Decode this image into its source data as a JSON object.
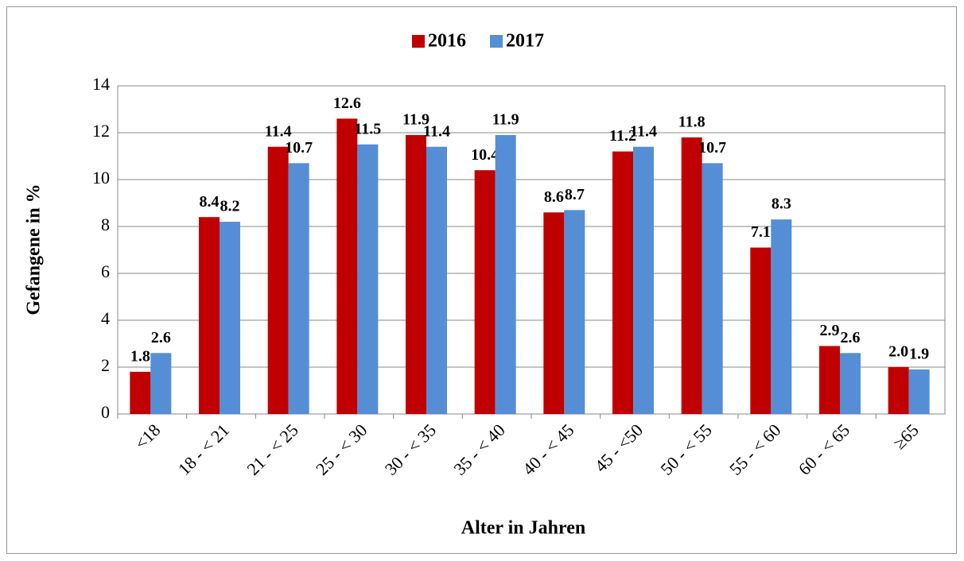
{
  "chart_data": {
    "type": "bar",
    "x_label": "Alter in Jahren",
    "y_label": "Gefangene in %",
    "categories": [
      "<18",
      "18 - < 21",
      "21 - < 25",
      "25 - < 30",
      "30 - < 35",
      "35 - < 40",
      "40 - < 45",
      "45 - <50",
      "50 - < 55",
      "55 - < 60",
      "60 - < 65",
      "≥65"
    ],
    "series": [
      {
        "name": "2016",
        "color": "#c00000",
        "values": [
          1.8,
          8.4,
          11.4,
          12.6,
          11.9,
          10.4,
          8.6,
          11.2,
          11.8,
          7.1,
          2.9,
          2.0
        ],
        "value_labels": [
          "1.8",
          "8.4",
          "11.4",
          "12.6",
          "11.9",
          "10.4",
          "8.6",
          "11.2",
          "11.8",
          "7.1",
          "2.9",
          "2.0"
        ]
      },
      {
        "name": "2017",
        "color": "#558ed5",
        "values": [
          2.6,
          8.2,
          10.7,
          11.5,
          11.4,
          11.9,
          8.7,
          11.4,
          10.7,
          8.3,
          2.6,
          1.9
        ],
        "value_labels": [
          "2.6",
          "8.2",
          "10.7",
          "11.5",
          "11.4",
          "11.9",
          "8.7",
          "11.4",
          "10.7",
          "8.3",
          "2.6",
          "1.9"
        ]
      }
    ],
    "ylim": [
      0,
      14
    ],
    "yticks": [
      0,
      2,
      4,
      6,
      8,
      10,
      12,
      14
    ],
    "grid": true,
    "legend": "top"
  }
}
